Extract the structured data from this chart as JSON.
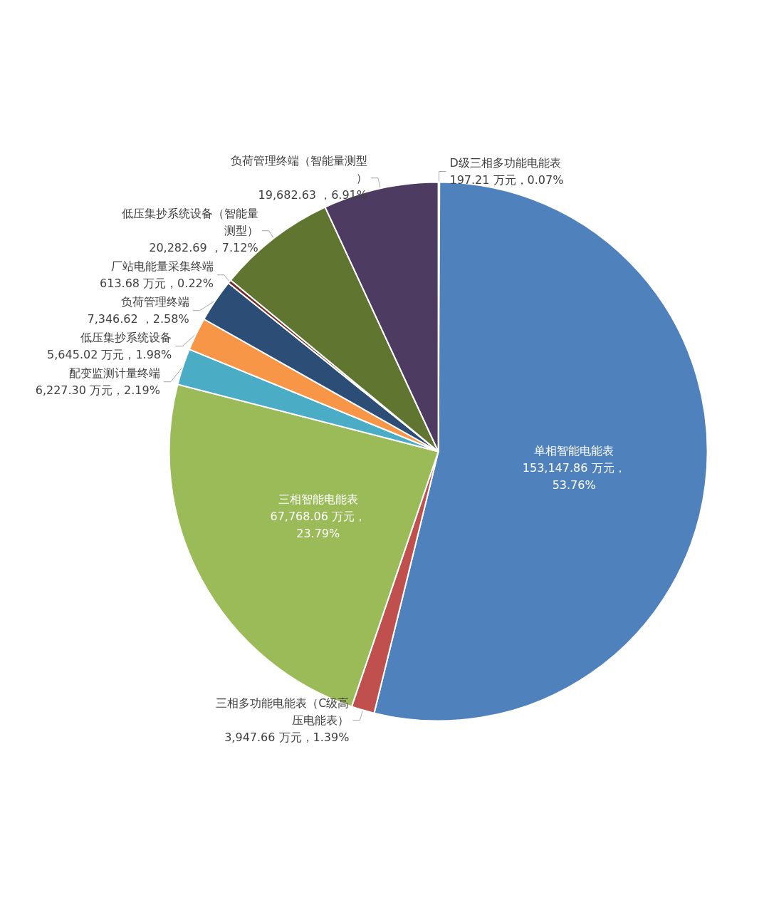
{
  "chart_data": {
    "type": "pie",
    "categories": [
      "D级三相多功能电能表",
      "单相智能电能表",
      "三相多功能电能表（C级高压电能表）",
      "三相智能电能表",
      "配变监测计量终端",
      "低压集抄系统设备",
      "负荷管理终端",
      "厂站电能量采集终端",
      "低压集抄系统设备（智能量测型）",
      "负荷管理终端（智能量测型）"
    ],
    "values": [
      197.21,
      153147.86,
      3947.66,
      67768.06,
      6227.3,
      5645.02,
      7346.62,
      613.68,
      20282.69,
      19682.63
    ],
    "value_labels": [
      "197.21 万元，0.07%",
      "153,147.86 万元，53.76%",
      "3,947.66 万元，1.39%",
      "67,768.06 万元，23.79%",
      "6,227.30 万元，2.19%",
      "5,645.02 万元，1.98%",
      "7,346.62 ，2.58%",
      "613.68 万元，0.22%",
      "20,282.69 ，7.12%",
      "19,682.63 ，6.91%"
    ],
    "colors": [
      "#729aca",
      "#4f81bd",
      "#c0504d",
      "#9bbb59",
      "#4bacc6",
      "#f79646",
      "#2c4d75",
      "#772c2a",
      "#5f7530",
      "#4d3b62"
    ],
    "legend": false
  }
}
